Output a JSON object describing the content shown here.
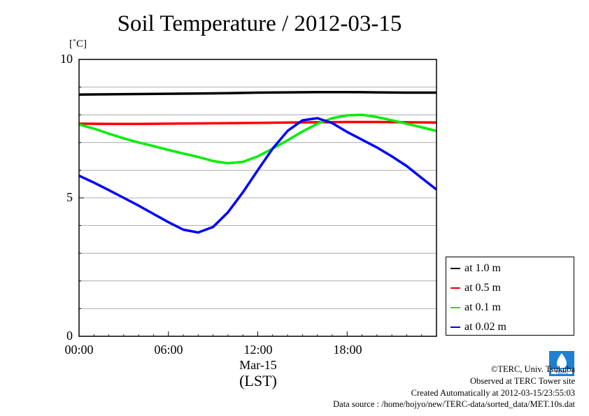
{
  "chart_data": {
    "type": "line",
    "title": "Soil Temperature / 2012-03-15",
    "ylabel": "[˚C]",
    "xlabel": "(LST)",
    "x_date_label": "Mar-15",
    "x_ticks": [
      "00:00",
      "06:00",
      "12:00",
      "18:00"
    ],
    "y_ticks": [
      "0",
      "5",
      "10"
    ],
    "xlim": [
      0,
      24
    ],
    "ylim": [
      0,
      10
    ],
    "grid": true,
    "legend_position": "bottom-right, outside plot",
    "series": [
      {
        "name": "at 1.0 m",
        "color": "#000000",
        "x": [
          0,
          2,
          4,
          6,
          8,
          10,
          12,
          14,
          16,
          18,
          20,
          22,
          24
        ],
        "values": [
          8.73,
          8.74,
          8.75,
          8.76,
          8.77,
          8.78,
          8.8,
          8.81,
          8.82,
          8.82,
          8.81,
          8.8,
          8.8
        ]
      },
      {
        "name": "at 0.5 m",
        "color": "#ff0000",
        "x": [
          0,
          2,
          4,
          6,
          8,
          10,
          12,
          14,
          16,
          18,
          20,
          22,
          24
        ],
        "values": [
          7.68,
          7.67,
          7.67,
          7.68,
          7.69,
          7.7,
          7.71,
          7.72,
          7.73,
          7.74,
          7.74,
          7.73,
          7.72
        ]
      },
      {
        "name": "at 0.1 m",
        "color": "#00ee00",
        "x": [
          0,
          1,
          2,
          3,
          4,
          5,
          6,
          7,
          8,
          9,
          10,
          11,
          12,
          13,
          14,
          15,
          16,
          17,
          18,
          19,
          20,
          21,
          22,
          23,
          24
        ],
        "values": [
          7.65,
          7.5,
          7.32,
          7.15,
          7.0,
          6.87,
          6.73,
          6.6,
          6.48,
          6.33,
          6.25,
          6.3,
          6.5,
          6.78,
          7.08,
          7.4,
          7.68,
          7.88,
          7.98,
          8.0,
          7.92,
          7.8,
          7.68,
          7.55,
          7.42
        ]
      },
      {
        "name": "at 0.02 m",
        "color": "#0000ff",
        "x": [
          0,
          1,
          2,
          3,
          4,
          5,
          6,
          7,
          8,
          9,
          10,
          11,
          12,
          13,
          14,
          15,
          16,
          17,
          18,
          19,
          20,
          21,
          22,
          23,
          24
        ],
        "values": [
          5.8,
          5.55,
          5.28,
          5.0,
          4.72,
          4.42,
          4.12,
          3.85,
          3.75,
          3.95,
          4.48,
          5.2,
          6.0,
          6.78,
          7.42,
          7.8,
          7.88,
          7.7,
          7.38,
          7.1,
          6.82,
          6.5,
          6.15,
          5.72,
          5.3
        ]
      }
    ]
  },
  "footer": {
    "copyright": "©TERC, Univ. Tsukuba",
    "observed": "Observed at TERC Tower site",
    "created": "Created Automatically at 2012-03-15/23:55:03",
    "source": "Data source : /home/hojyo/new/TERC-data/sorted_data/MET.10s.dat"
  },
  "logo_text": "TERC"
}
